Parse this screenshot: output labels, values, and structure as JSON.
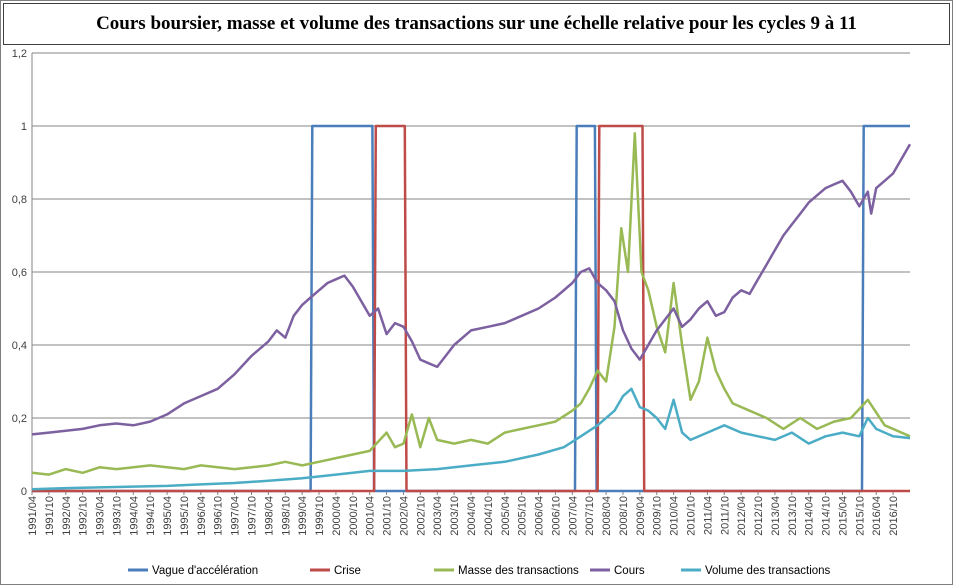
{
  "title": "Cours boursier, masse et volume des transactions sur une échelle relative pour les cycles 9 à 11",
  "chart_data": {
    "type": "line",
    "title": "Cours boursier, masse et volume des transactions sur une échelle relative pour les cycles 9 à 11",
    "xlabel": "",
    "ylabel": "",
    "ylim": [
      0,
      1.2
    ],
    "yticks": [
      "0",
      "0,2",
      "0,4",
      "0,6",
      "0,8",
      "1",
      "1,2"
    ],
    "grid": "horizontal",
    "legend_position": "bottom",
    "x_ticks": [
      "1991/04",
      "1991/10",
      "1992/04",
      "1992/10",
      "1993/04",
      "1993/10",
      "1994/04",
      "1994/10",
      "1995/04",
      "1995/10",
      "1996/04",
      "1996/10",
      "1997/04",
      "1997/10",
      "1998/04",
      "1998/10",
      "1999/04",
      "1999/10",
      "2000/04",
      "2000/10",
      "2001/04",
      "2001/10",
      "2002/04",
      "2002/10",
      "2003/04",
      "2003/10",
      "2004/04",
      "2004/10",
      "2005/04",
      "2005/10",
      "2006/04",
      "2006/10",
      "2007/04",
      "2007/10",
      "2008/04",
      "2008/10",
      "2009/04",
      "2009/10",
      "2010/04",
      "2010/10",
      "2011/04",
      "2011/10",
      "2012/04",
      "2012/10",
      "2013/04",
      "2013/10",
      "2014/04",
      "2014/10",
      "2015/04",
      "2015/10",
      "2016/04",
      "2016/10"
    ],
    "x_range": [
      1991.25,
      2017.25
    ],
    "series": [
      {
        "name": "Vague d'accélération",
        "color": "#4a7ebb",
        "points": [
          [
            1991.25,
            0
          ],
          [
            1999.5,
            0
          ],
          [
            1999.55,
            1
          ],
          [
            2001.33,
            1
          ],
          [
            2001.38,
            0
          ],
          [
            2007.33,
            0
          ],
          [
            2007.38,
            1
          ],
          [
            2007.92,
            1
          ],
          [
            2007.97,
            0
          ],
          [
            2015.83,
            0
          ],
          [
            2015.88,
            1
          ],
          [
            2017.25,
            1
          ]
        ]
      },
      {
        "name": "Crise",
        "color": "#be4b48",
        "points": [
          [
            1991.25,
            0
          ],
          [
            2001.38,
            0
          ],
          [
            2001.43,
            1
          ],
          [
            2002.29,
            1
          ],
          [
            2002.34,
            0
          ],
          [
            2008.0,
            0
          ],
          [
            2008.05,
            1
          ],
          [
            2009.33,
            1
          ],
          [
            2009.38,
            0
          ],
          [
            2017.25,
            0
          ]
        ]
      },
      {
        "name": "Masse des transactions",
        "color": "#98b954",
        "points": [
          [
            1991.25,
            0.05
          ],
          [
            1991.75,
            0.045
          ],
          [
            1992.25,
            0.06
          ],
          [
            1992.75,
            0.05
          ],
          [
            1993.25,
            0.065
          ],
          [
            1993.75,
            0.06
          ],
          [
            1994.25,
            0.065
          ],
          [
            1994.75,
            0.07
          ],
          [
            1995.25,
            0.065
          ],
          [
            1995.75,
            0.06
          ],
          [
            1996.25,
            0.07
          ],
          [
            1996.75,
            0.065
          ],
          [
            1997.25,
            0.06
          ],
          [
            1997.75,
            0.065
          ],
          [
            1998.25,
            0.07
          ],
          [
            1998.75,
            0.08
          ],
          [
            1999.25,
            0.07
          ],
          [
            1999.75,
            0.08
          ],
          [
            2000.25,
            0.09
          ],
          [
            2000.75,
            0.1
          ],
          [
            2001.25,
            0.11
          ],
          [
            2001.75,
            0.16
          ],
          [
            2002.0,
            0.12
          ],
          [
            2002.25,
            0.13
          ],
          [
            2002.5,
            0.21
          ],
          [
            2002.75,
            0.12
          ],
          [
            2003.0,
            0.2
          ],
          [
            2003.25,
            0.14
          ],
          [
            2003.75,
            0.13
          ],
          [
            2004.25,
            0.14
          ],
          [
            2004.75,
            0.13
          ],
          [
            2005.25,
            0.16
          ],
          [
            2005.75,
            0.17
          ],
          [
            2006.25,
            0.18
          ],
          [
            2006.75,
            0.19
          ],
          [
            2007.25,
            0.22
          ],
          [
            2007.5,
            0.24
          ],
          [
            2007.75,
            0.28
          ],
          [
            2008.0,
            0.33
          ],
          [
            2008.25,
            0.3
          ],
          [
            2008.5,
            0.45
          ],
          [
            2008.7,
            0.72
          ],
          [
            2008.9,
            0.6
          ],
          [
            2009.1,
            0.98
          ],
          [
            2009.3,
            0.6
          ],
          [
            2009.5,
            0.55
          ],
          [
            2009.75,
            0.45
          ],
          [
            2010.0,
            0.38
          ],
          [
            2010.25,
            0.57
          ],
          [
            2010.5,
            0.4
          ],
          [
            2010.75,
            0.25
          ],
          [
            2011.0,
            0.3
          ],
          [
            2011.25,
            0.42
          ],
          [
            2011.5,
            0.33
          ],
          [
            2011.75,
            0.28
          ],
          [
            2012.0,
            0.24
          ],
          [
            2012.5,
            0.22
          ],
          [
            2013.0,
            0.2
          ],
          [
            2013.5,
            0.17
          ],
          [
            2014.0,
            0.2
          ],
          [
            2014.5,
            0.17
          ],
          [
            2015.0,
            0.19
          ],
          [
            2015.5,
            0.2
          ],
          [
            2016.0,
            0.25
          ],
          [
            2016.5,
            0.18
          ],
          [
            2017.0,
            0.16
          ],
          [
            2017.25,
            0.15
          ]
        ]
      },
      {
        "name": "Cours",
        "color": "#7d60a0",
        "points": [
          [
            1991.25,
            0.155
          ],
          [
            1991.75,
            0.16
          ],
          [
            1992.25,
            0.165
          ],
          [
            1992.75,
            0.17
          ],
          [
            1993.25,
            0.18
          ],
          [
            1993.75,
            0.185
          ],
          [
            1994.25,
            0.18
          ],
          [
            1994.75,
            0.19
          ],
          [
            1995.25,
            0.21
          ],
          [
            1995.75,
            0.24
          ],
          [
            1996.25,
            0.26
          ],
          [
            1996.75,
            0.28
          ],
          [
            1997.25,
            0.32
          ],
          [
            1997.75,
            0.37
          ],
          [
            1998.25,
            0.41
          ],
          [
            1998.5,
            0.44
          ],
          [
            1998.75,
            0.42
          ],
          [
            1999.0,
            0.48
          ],
          [
            1999.25,
            0.51
          ],
          [
            1999.5,
            0.53
          ],
          [
            1999.75,
            0.55
          ],
          [
            2000.0,
            0.57
          ],
          [
            2000.25,
            0.58
          ],
          [
            2000.5,
            0.59
          ],
          [
            2000.75,
            0.56
          ],
          [
            2001.0,
            0.52
          ],
          [
            2001.25,
            0.48
          ],
          [
            2001.5,
            0.5
          ],
          [
            2001.75,
            0.43
          ],
          [
            2002.0,
            0.46
          ],
          [
            2002.25,
            0.45
          ],
          [
            2002.5,
            0.41
          ],
          [
            2002.75,
            0.36
          ],
          [
            2003.0,
            0.35
          ],
          [
            2003.25,
            0.34
          ],
          [
            2003.5,
            0.37
          ],
          [
            2003.75,
            0.4
          ],
          [
            2004.25,
            0.44
          ],
          [
            2004.75,
            0.45
          ],
          [
            2005.25,
            0.46
          ],
          [
            2005.75,
            0.48
          ],
          [
            2006.25,
            0.5
          ],
          [
            2006.75,
            0.53
          ],
          [
            2007.25,
            0.57
          ],
          [
            2007.5,
            0.6
          ],
          [
            2007.75,
            0.61
          ],
          [
            2008.0,
            0.57
          ],
          [
            2008.25,
            0.55
          ],
          [
            2008.5,
            0.52
          ],
          [
            2008.75,
            0.44
          ],
          [
            2009.0,
            0.39
          ],
          [
            2009.25,
            0.36
          ],
          [
            2009.5,
            0.4
          ],
          [
            2009.75,
            0.44
          ],
          [
            2010.0,
            0.47
          ],
          [
            2010.25,
            0.5
          ],
          [
            2010.5,
            0.45
          ],
          [
            2010.75,
            0.47
          ],
          [
            2011.0,
            0.5
          ],
          [
            2011.25,
            0.52
          ],
          [
            2011.5,
            0.48
          ],
          [
            2011.75,
            0.49
          ],
          [
            2012.0,
            0.53
          ],
          [
            2012.25,
            0.55
          ],
          [
            2012.5,
            0.54
          ],
          [
            2012.75,
            0.58
          ],
          [
            2013.0,
            0.62
          ],
          [
            2013.25,
            0.66
          ],
          [
            2013.5,
            0.7
          ],
          [
            2013.75,
            0.73
          ],
          [
            2014.0,
            0.76
          ],
          [
            2014.25,
            0.79
          ],
          [
            2014.5,
            0.81
          ],
          [
            2014.75,
            0.83
          ],
          [
            2015.0,
            0.84
          ],
          [
            2015.25,
            0.85
          ],
          [
            2015.5,
            0.82
          ],
          [
            2015.75,
            0.78
          ],
          [
            2016.0,
            0.82
          ],
          [
            2016.1,
            0.76
          ],
          [
            2016.25,
            0.83
          ],
          [
            2016.5,
            0.85
          ],
          [
            2016.75,
            0.87
          ],
          [
            2017.0,
            0.91
          ],
          [
            2017.25,
            0.95
          ]
        ]
      },
      {
        "name": "Volume des transactions",
        "color": "#4bacc6",
        "points": [
          [
            1991.25,
            0.005
          ],
          [
            1992.25,
            0.008
          ],
          [
            1993.25,
            0.01
          ],
          [
            1994.25,
            0.012
          ],
          [
            1995.25,
            0.014
          ],
          [
            1996.25,
            0.018
          ],
          [
            1997.25,
            0.022
          ],
          [
            1998.25,
            0.028
          ],
          [
            1999.25,
            0.035
          ],
          [
            2000.25,
            0.045
          ],
          [
            2001.25,
            0.055
          ],
          [
            2002.25,
            0.055
          ],
          [
            2003.25,
            0.06
          ],
          [
            2004.25,
            0.07
          ],
          [
            2005.25,
            0.08
          ],
          [
            2006.25,
            0.1
          ],
          [
            2007.0,
            0.12
          ],
          [
            2007.5,
            0.15
          ],
          [
            2008.0,
            0.18
          ],
          [
            2008.5,
            0.22
          ],
          [
            2008.75,
            0.26
          ],
          [
            2009.0,
            0.28
          ],
          [
            2009.25,
            0.23
          ],
          [
            2009.5,
            0.22
          ],
          [
            2009.75,
            0.2
          ],
          [
            2010.0,
            0.17
          ],
          [
            2010.25,
            0.25
          ],
          [
            2010.5,
            0.16
          ],
          [
            2010.75,
            0.14
          ],
          [
            2011.25,
            0.16
          ],
          [
            2011.75,
            0.18
          ],
          [
            2012.25,
            0.16
          ],
          [
            2012.75,
            0.15
          ],
          [
            2013.25,
            0.14
          ],
          [
            2013.75,
            0.16
          ],
          [
            2014.25,
            0.13
          ],
          [
            2014.75,
            0.15
          ],
          [
            2015.25,
            0.16
          ],
          [
            2015.75,
            0.15
          ],
          [
            2016.0,
            0.2
          ],
          [
            2016.25,
            0.17
          ],
          [
            2016.75,
            0.15
          ],
          [
            2017.25,
            0.145
          ]
        ]
      }
    ]
  }
}
